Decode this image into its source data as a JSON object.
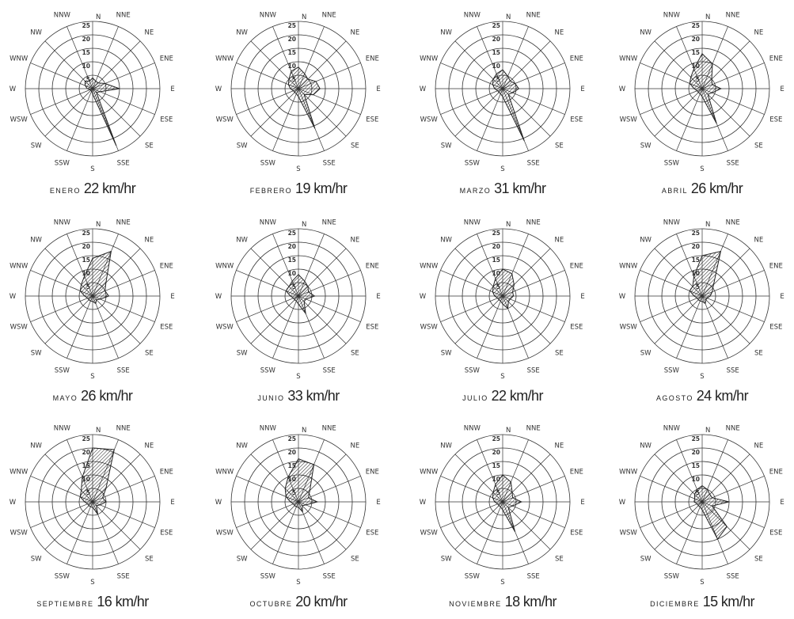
{
  "chart_data": [
    {
      "type": "windrose",
      "month": "ENERO",
      "speed": "22 km/hr",
      "directions": [
        "N",
        "NNE",
        "NE",
        "ENE",
        "E",
        "ESE",
        "SE",
        "SSE",
        "S",
        "SSW",
        "SW",
        "WSW",
        "W",
        "WNW",
        "NW",
        "NNW"
      ],
      "ring_labels": [
        "5",
        "10",
        "15",
        "20",
        "25"
      ],
      "rlim": [
        0,
        25
      ],
      "values": [
        4,
        3,
        3,
        5,
        10,
        3,
        2,
        23,
        2,
        1,
        1,
        1,
        2,
        3,
        4,
        3
      ]
    },
    {
      "type": "windrose",
      "month": "FEBRERO",
      "speed": "19 km/hr",
      "directions": [
        "N",
        "NNE",
        "NE",
        "ENE",
        "E",
        "ESE",
        "SE",
        "SSE",
        "S",
        "SSW",
        "SW",
        "WSW",
        "W",
        "WNW",
        "NW",
        "NNW"
      ],
      "ring_labels": [
        "5",
        "10",
        "15",
        "20",
        "25"
      ],
      "rlim": [
        0,
        25
      ],
      "values": [
        8,
        6,
        5,
        7,
        8,
        6,
        3,
        16,
        3,
        2,
        2,
        2,
        3,
        4,
        5,
        7
      ]
    },
    {
      "type": "windrose",
      "month": "MARZO",
      "speed": "31 km/hr",
      "directions": [
        "N",
        "NNE",
        "NE",
        "ENE",
        "E",
        "ESE",
        "SE",
        "SSE",
        "S",
        "SSW",
        "SW",
        "WSW",
        "W",
        "WNW",
        "NW",
        "NNW"
      ],
      "ring_labels": [
        "5",
        "10",
        "15",
        "20",
        "25"
      ],
      "rlim": [
        0,
        25
      ],
      "values": [
        7,
        5,
        4,
        5,
        6,
        4,
        3,
        21,
        3,
        2,
        2,
        2,
        3,
        4,
        5,
        6
      ]
    },
    {
      "type": "windrose",
      "month": "ABRIL",
      "speed": "26 km/hr",
      "directions": [
        "N",
        "NNE",
        "NE",
        "ENE",
        "E",
        "ESE",
        "SE",
        "SSE",
        "S",
        "SSW",
        "SW",
        "WSW",
        "W",
        "WNW",
        "NW",
        "NNW"
      ],
      "ring_labels": [
        "5",
        "10",
        "15",
        "20",
        "25"
      ],
      "rlim": [
        0,
        25
      ],
      "values": [
        13,
        10,
        5,
        4,
        7,
        4,
        3,
        14,
        3,
        2,
        2,
        2,
        3,
        5,
        6,
        8
      ]
    },
    {
      "type": "windrose",
      "month": "MAYO",
      "speed": "26 km/hr",
      "directions": [
        "N",
        "NNE",
        "NE",
        "ENE",
        "E",
        "ESE",
        "SE",
        "SSE",
        "S",
        "SSW",
        "SW",
        "WSW",
        "W",
        "WNW",
        "NW",
        "NNW"
      ],
      "ring_labels": [
        "5",
        "10",
        "15",
        "20",
        "25"
      ],
      "rlim": [
        0,
        25
      ],
      "values": [
        14,
        18,
        7,
        5,
        6,
        3,
        2,
        3,
        2,
        2,
        2,
        2,
        3,
        5,
        6,
        8
      ]
    },
    {
      "type": "windrose",
      "month": "JUNIO",
      "speed": "33 km/hr",
      "directions": [
        "N",
        "NNE",
        "NE",
        "ENE",
        "E",
        "ESE",
        "SE",
        "SSE",
        "S",
        "SSW",
        "SW",
        "WSW",
        "W",
        "WNW",
        "NW",
        "NNW"
      ],
      "ring_labels": [
        "5",
        "10",
        "15",
        "20",
        "25"
      ],
      "rlim": [
        0,
        25
      ],
      "values": [
        8,
        6,
        5,
        4,
        6,
        3,
        3,
        7,
        3,
        2,
        2,
        2,
        3,
        5,
        5,
        6
      ]
    },
    {
      "type": "windrose",
      "month": "JULIO",
      "speed": "22 km/hr",
      "directions": [
        "N",
        "NNE",
        "NE",
        "ENE",
        "E",
        "ESE",
        "SE",
        "SSE",
        "S",
        "SSW",
        "SW",
        "WSW",
        "W",
        "WNW",
        "NW",
        "NNW"
      ],
      "ring_labels": [
        "5",
        "10",
        "15",
        "20",
        "25"
      ],
      "rlim": [
        0,
        25
      ],
      "values": [
        10,
        9,
        6,
        4,
        4,
        3,
        3,
        5,
        3,
        2,
        2,
        2,
        3,
        4,
        5,
        7
      ]
    },
    {
      "type": "windrose",
      "month": "AGOSTO",
      "speed": "24 km/hr",
      "directions": [
        "N",
        "NNE",
        "NE",
        "ENE",
        "E",
        "ESE",
        "SE",
        "SSE",
        "S",
        "SSW",
        "SW",
        "WSW",
        "W",
        "WNW",
        "NW",
        "NNW"
      ],
      "ring_labels": [
        "5",
        "10",
        "15",
        "20",
        "25"
      ],
      "rlim": [
        0,
        25
      ],
      "values": [
        15,
        18,
        6,
        4,
        3,
        2,
        2,
        3,
        2,
        2,
        2,
        2,
        3,
        5,
        5,
        8
      ]
    },
    {
      "type": "windrose",
      "month": "SEPTIEMBRE",
      "speed": "16 km/hr",
      "directions": [
        "N",
        "NNE",
        "NE",
        "ENE",
        "E",
        "ESE",
        "SE",
        "SSE",
        "S",
        "SSW",
        "SW",
        "WSW",
        "W",
        "WNW",
        "NW",
        "NNW"
      ],
      "ring_labels": [
        "5",
        "10",
        "15",
        "20",
        "25"
      ],
      "rlim": [
        0,
        25
      ],
      "values": [
        20,
        21,
        7,
        4,
        5,
        3,
        2,
        5,
        2,
        2,
        2,
        2,
        3,
        5,
        6,
        10
      ]
    },
    {
      "type": "windrose",
      "month": "OCTUBRE",
      "speed": "20 km/hr",
      "directions": [
        "N",
        "NNE",
        "NE",
        "ENE",
        "E",
        "ESE",
        "SE",
        "SSE",
        "S",
        "SSW",
        "SW",
        "WSW",
        "W",
        "WNW",
        "NW",
        "NNW"
      ],
      "ring_labels": [
        "5",
        "10",
        "15",
        "20",
        "25"
      ],
      "rlim": [
        0,
        25
      ],
      "values": [
        16,
        15,
        6,
        4,
        7,
        3,
        2,
        4,
        2,
        2,
        2,
        2,
        3,
        5,
        7,
        10
      ]
    },
    {
      "type": "windrose",
      "month": "NOVIEMBRE",
      "speed": "18 km/hr",
      "directions": [
        "N",
        "NNE",
        "NE",
        "ENE",
        "E",
        "ESE",
        "SE",
        "SSE",
        "S",
        "SSW",
        "SW",
        "WSW",
        "W",
        "WNW",
        "NW",
        "NNW"
      ],
      "ring_labels": [
        "5",
        "10",
        "15",
        "20",
        "25"
      ],
      "rlim": [
        0,
        25
      ],
      "values": [
        10,
        8,
        5,
        4,
        7,
        4,
        3,
        12,
        3,
        2,
        2,
        2,
        3,
        4,
        5,
        7
      ]
    },
    {
      "type": "windrose",
      "month": "DICIEMBRE",
      "speed": "15 km/hr",
      "directions": [
        "N",
        "NNE",
        "NE",
        "ENE",
        "E",
        "ESE",
        "SE",
        "SSE",
        "S",
        "SSW",
        "SW",
        "WSW",
        "W",
        "WNW",
        "NW",
        "NNW"
      ],
      "ring_labels": [
        "5",
        "10",
        "15",
        "20",
        "25"
      ],
      "rlim": [
        0,
        25
      ],
      "values": [
        6,
        5,
        4,
        4,
        10,
        4,
        13,
        15,
        3,
        2,
        2,
        2,
        3,
        3,
        4,
        5
      ]
    }
  ],
  "colors": {
    "line": "#333333",
    "hatch": "#222222",
    "background": "#ffffff"
  }
}
